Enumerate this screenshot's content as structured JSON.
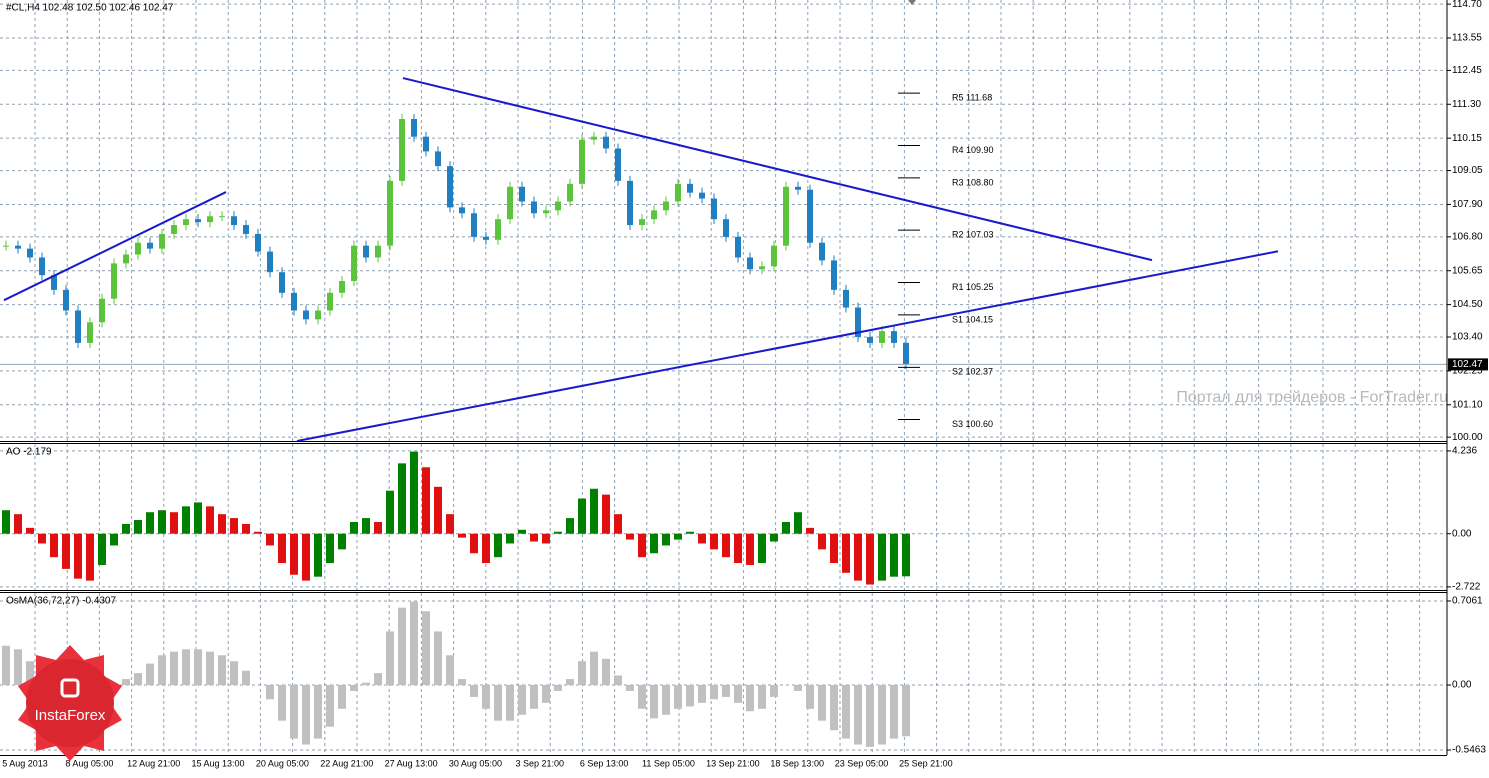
{
  "chart_data": [
    {
      "type": "candlestick",
      "title": "#CL,H4  102.48 102.50 102.46 102.47",
      "up_color": "#5cc43c",
      "down_color": "#1f7fc0",
      "values": [
        106.5,
        106.4,
        106.1,
        105.5,
        105.0,
        104.3,
        103.2,
        103.9,
        104.7,
        105.9,
        106.2,
        106.6,
        106.4,
        106.9,
        107.2,
        107.4,
        107.3,
        107.5,
        107.5,
        107.2,
        106.9,
        106.3,
        105.6,
        104.9,
        104.3,
        104.0,
        104.3,
        104.9,
        105.3,
        106.5,
        106.1,
        106.5,
        108.7,
        110.8,
        110.2,
        109.7,
        109.2,
        107.8,
        107.6,
        106.8,
        106.7,
        107.4,
        108.5,
        108.0,
        107.6,
        107.7,
        108.0,
        108.6,
        110.1,
        110.2,
        109.8,
        108.7,
        107.2,
        107.4,
        107.7,
        108.0,
        108.6,
        108.3,
        108.1,
        107.4,
        106.8,
        106.1,
        105.7,
        105.8,
        106.5,
        108.5,
        108.4,
        106.6,
        106.0,
        105.0,
        104.4,
        103.4,
        103.2,
        103.6,
        103.2,
        102.47
      ],
      "ylim": [
        99.87,
        114.84
      ],
      "yticks": [
        {
          "value": 114.7,
          "label": "114.70"
        },
        113.55,
        112.45,
        {
          "value": 111.3,
          "label": "111.30"
        },
        110.15,
        109.05,
        {
          "value": 107.9,
          "label": "107.90"
        },
        {
          "value": 106.8,
          "label": "106.80"
        },
        105.65,
        {
          "value": 104.5,
          "label": "104.50"
        },
        {
          "value": 103.4,
          "label": "103.40"
        },
        102.25,
        {
          "value": 101.1,
          "label": "101.10"
        },
        {
          "value": 100,
          "label": "100.00"
        }
      ],
      "grid": true,
      "pivots": [
        {
          "label": "R5 111.68",
          "value": 111.68
        },
        {
          "label": "R4 109.90",
          "value": 109.9
        },
        {
          "label": "R3 108.80",
          "value": 108.8
        },
        {
          "label": "R2 107.03",
          "value": 107.03
        },
        {
          "label": "R1 105.25",
          "value": 105.25
        },
        {
          "label": "S1 104.15",
          "value": 104.15
        },
        {
          "label": "S2 102.37",
          "value": 102.37
        },
        {
          "label": "S3 100.60",
          "value": 100.6
        }
      ],
      "trendlines": [
        {
          "from": 104.65,
          "to": 108.32
        },
        {
          "from": 99.87,
          "to": 106.31
        },
        {
          "from": 112.19,
          "to": 106.01
        }
      ],
      "trend_color": "#1a1acd",
      "watermark": "Портал для трейдеров - ForTrader.ru"
    },
    {
      "type": "ao",
      "title": "AO -2.179",
      "up_color": "#008000",
      "down_color": "#e01010",
      "values": [
        1.2,
        1.0,
        0.3,
        -0.5,
        -1.2,
        -1.8,
        -2.3,
        -2.4,
        -1.6,
        -0.6,
        0.5,
        0.7,
        1.1,
        1.2,
        1.1,
        1.4,
        1.6,
        1.4,
        1.0,
        0.8,
        0.5,
        0.1,
        -0.6,
        -1.5,
        -2.1,
        -2.4,
        -2.2,
        -1.5,
        -0.8,
        0.6,
        0.8,
        0.6,
        2.2,
        3.6,
        4.2,
        3.4,
        2.4,
        1.0,
        -0.2,
        -1.0,
        -1.5,
        -1.2,
        -0.5,
        0.2,
        -0.4,
        -0.5,
        0.1,
        0.8,
        1.8,
        2.3,
        2.0,
        1.0,
        -0.3,
        -1.2,
        -1.0,
        -0.6,
        -0.3,
        0.1,
        -0.5,
        -0.8,
        -1.2,
        -1.5,
        -1.6,
        -1.5,
        -0.4,
        0.6,
        1.1,
        0.3,
        -0.8,
        -1.5,
        -2.0,
        -2.4,
        -2.6,
        -2.4,
        -2.2,
        -2.179
      ],
      "ylim": [
        -2.88,
        4.59
      ],
      "yticks": [
        4.236,
        {
          "value": 0,
          "label": "0.00"
        },
        -2.722
      ],
      "grid": true
    },
    {
      "type": "osma",
      "title": "OsMA(36,72,27) -0.4307",
      "color": "#c0c0c0",
      "values": [
        0.33,
        0.3,
        0.2,
        0.1,
        -0.05,
        -0.1,
        -0.05,
        0.0,
        -0.05,
        -0.02,
        0.05,
        0.1,
        0.18,
        0.25,
        0.28,
        0.3,
        0.3,
        0.28,
        0.25,
        0.2,
        0.12,
        0.0,
        -0.12,
        -0.3,
        -0.45,
        -0.5,
        -0.45,
        -0.35,
        -0.2,
        -0.05,
        0.02,
        0.1,
        0.45,
        0.65,
        0.7,
        0.62,
        0.45,
        0.25,
        0.05,
        -0.1,
        -0.2,
        -0.3,
        -0.3,
        -0.25,
        -0.2,
        -0.15,
        -0.05,
        0.05,
        0.2,
        0.28,
        0.22,
        0.08,
        -0.05,
        -0.2,
        -0.28,
        -0.25,
        -0.2,
        -0.18,
        -0.15,
        -0.12,
        -0.1,
        -0.15,
        -0.22,
        -0.2,
        -0.1,
        0.0,
        -0.05,
        -0.2,
        -0.3,
        -0.38,
        -0.45,
        -0.5,
        -0.52,
        -0.5,
        -0.45,
        -0.4307
      ],
      "ylim": [
        -0.588,
        0.773
      ],
      "yticks": [
        0.7061,
        {
          "value": 0,
          "label": "0.00"
        },
        -0.5463
      ],
      "grid": true,
      "x_labels": [
        "5 Aug 2013",
        "8 Aug 05:00",
        "12 Aug 21:00",
        "15 Aug 13:00",
        "20 Aug 05:00",
        "22 Aug 21:00",
        "27 Aug 13:00",
        "30 Aug 05:00",
        "3 Sep 21:00",
        "6 Sep 13:00",
        "11 Sep 05:00",
        "13 Sep 21:00",
        "18 Sep 13:00",
        "23 Sep 05:00",
        "25 Sep 21:00"
      ]
    }
  ],
  "logo": {
    "text": "InstaForex"
  }
}
